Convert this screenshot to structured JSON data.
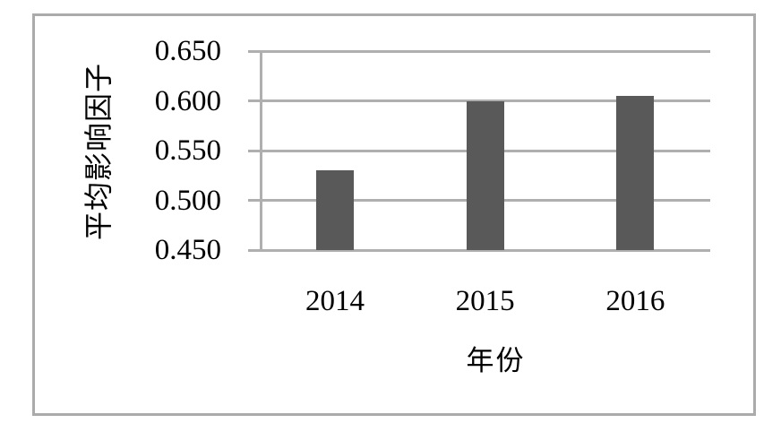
{
  "chart_data": {
    "type": "bar",
    "categories": [
      "2014",
      "2015",
      "2016"
    ],
    "values": [
      0.53,
      0.6,
      0.605
    ],
    "xlabel": "年份",
    "ylabel": "平均影响因子",
    "ylim": [
      0.45,
      0.65
    ],
    "ytick_step": 0.05,
    "yticks": [
      "0.650",
      "0.600",
      "0.550",
      "0.500",
      "0.450"
    ],
    "grid": true,
    "legend": "none",
    "bar_color": "#595959",
    "grid_color": "#AFAFAF",
    "axis_color": "#AFAFAF",
    "frame_border_color": "#ABABAB",
    "text_color": "#000000",
    "background": "#FFFFFF"
  }
}
